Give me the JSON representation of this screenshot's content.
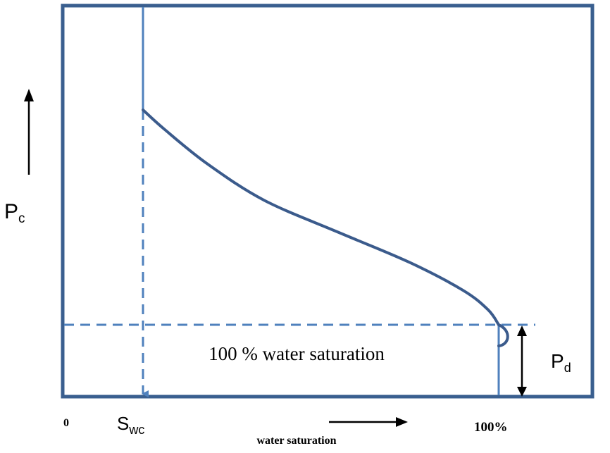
{
  "chart_data": {
    "type": "line",
    "title": "",
    "curve_name": "capillary pressure curve",
    "x_axis": {
      "label": "water saturation",
      "tick_labels": {
        "min": "0",
        "max": "100%"
      },
      "irreducible_marker": {
        "base": "S",
        "subscript": "wc"
      }
    },
    "y_axis": {
      "label": {
        "base": "P",
        "subscript": "c"
      }
    },
    "displacement_pressure": {
      "base": "P",
      "subscript": "d"
    },
    "region_label": "100 % water saturation",
    "series": [
      {
        "name": "Pc curve",
        "points_fraction": [
          [
            0.0,
            1.0
          ],
          [
            0.06,
            0.91
          ],
          [
            0.18,
            0.75
          ],
          [
            0.34,
            0.58
          ],
          [
            0.55,
            0.43
          ],
          [
            0.75,
            0.29
          ],
          [
            0.9,
            0.16
          ],
          [
            0.97,
            0.07
          ],
          [
            1.0,
            0.0
          ]
        ]
      }
    ],
    "colors": {
      "frame": "#3a5f8f",
      "curve": "#3b5b8c",
      "guide": "#4f81bd",
      "text": "#000000"
    }
  }
}
